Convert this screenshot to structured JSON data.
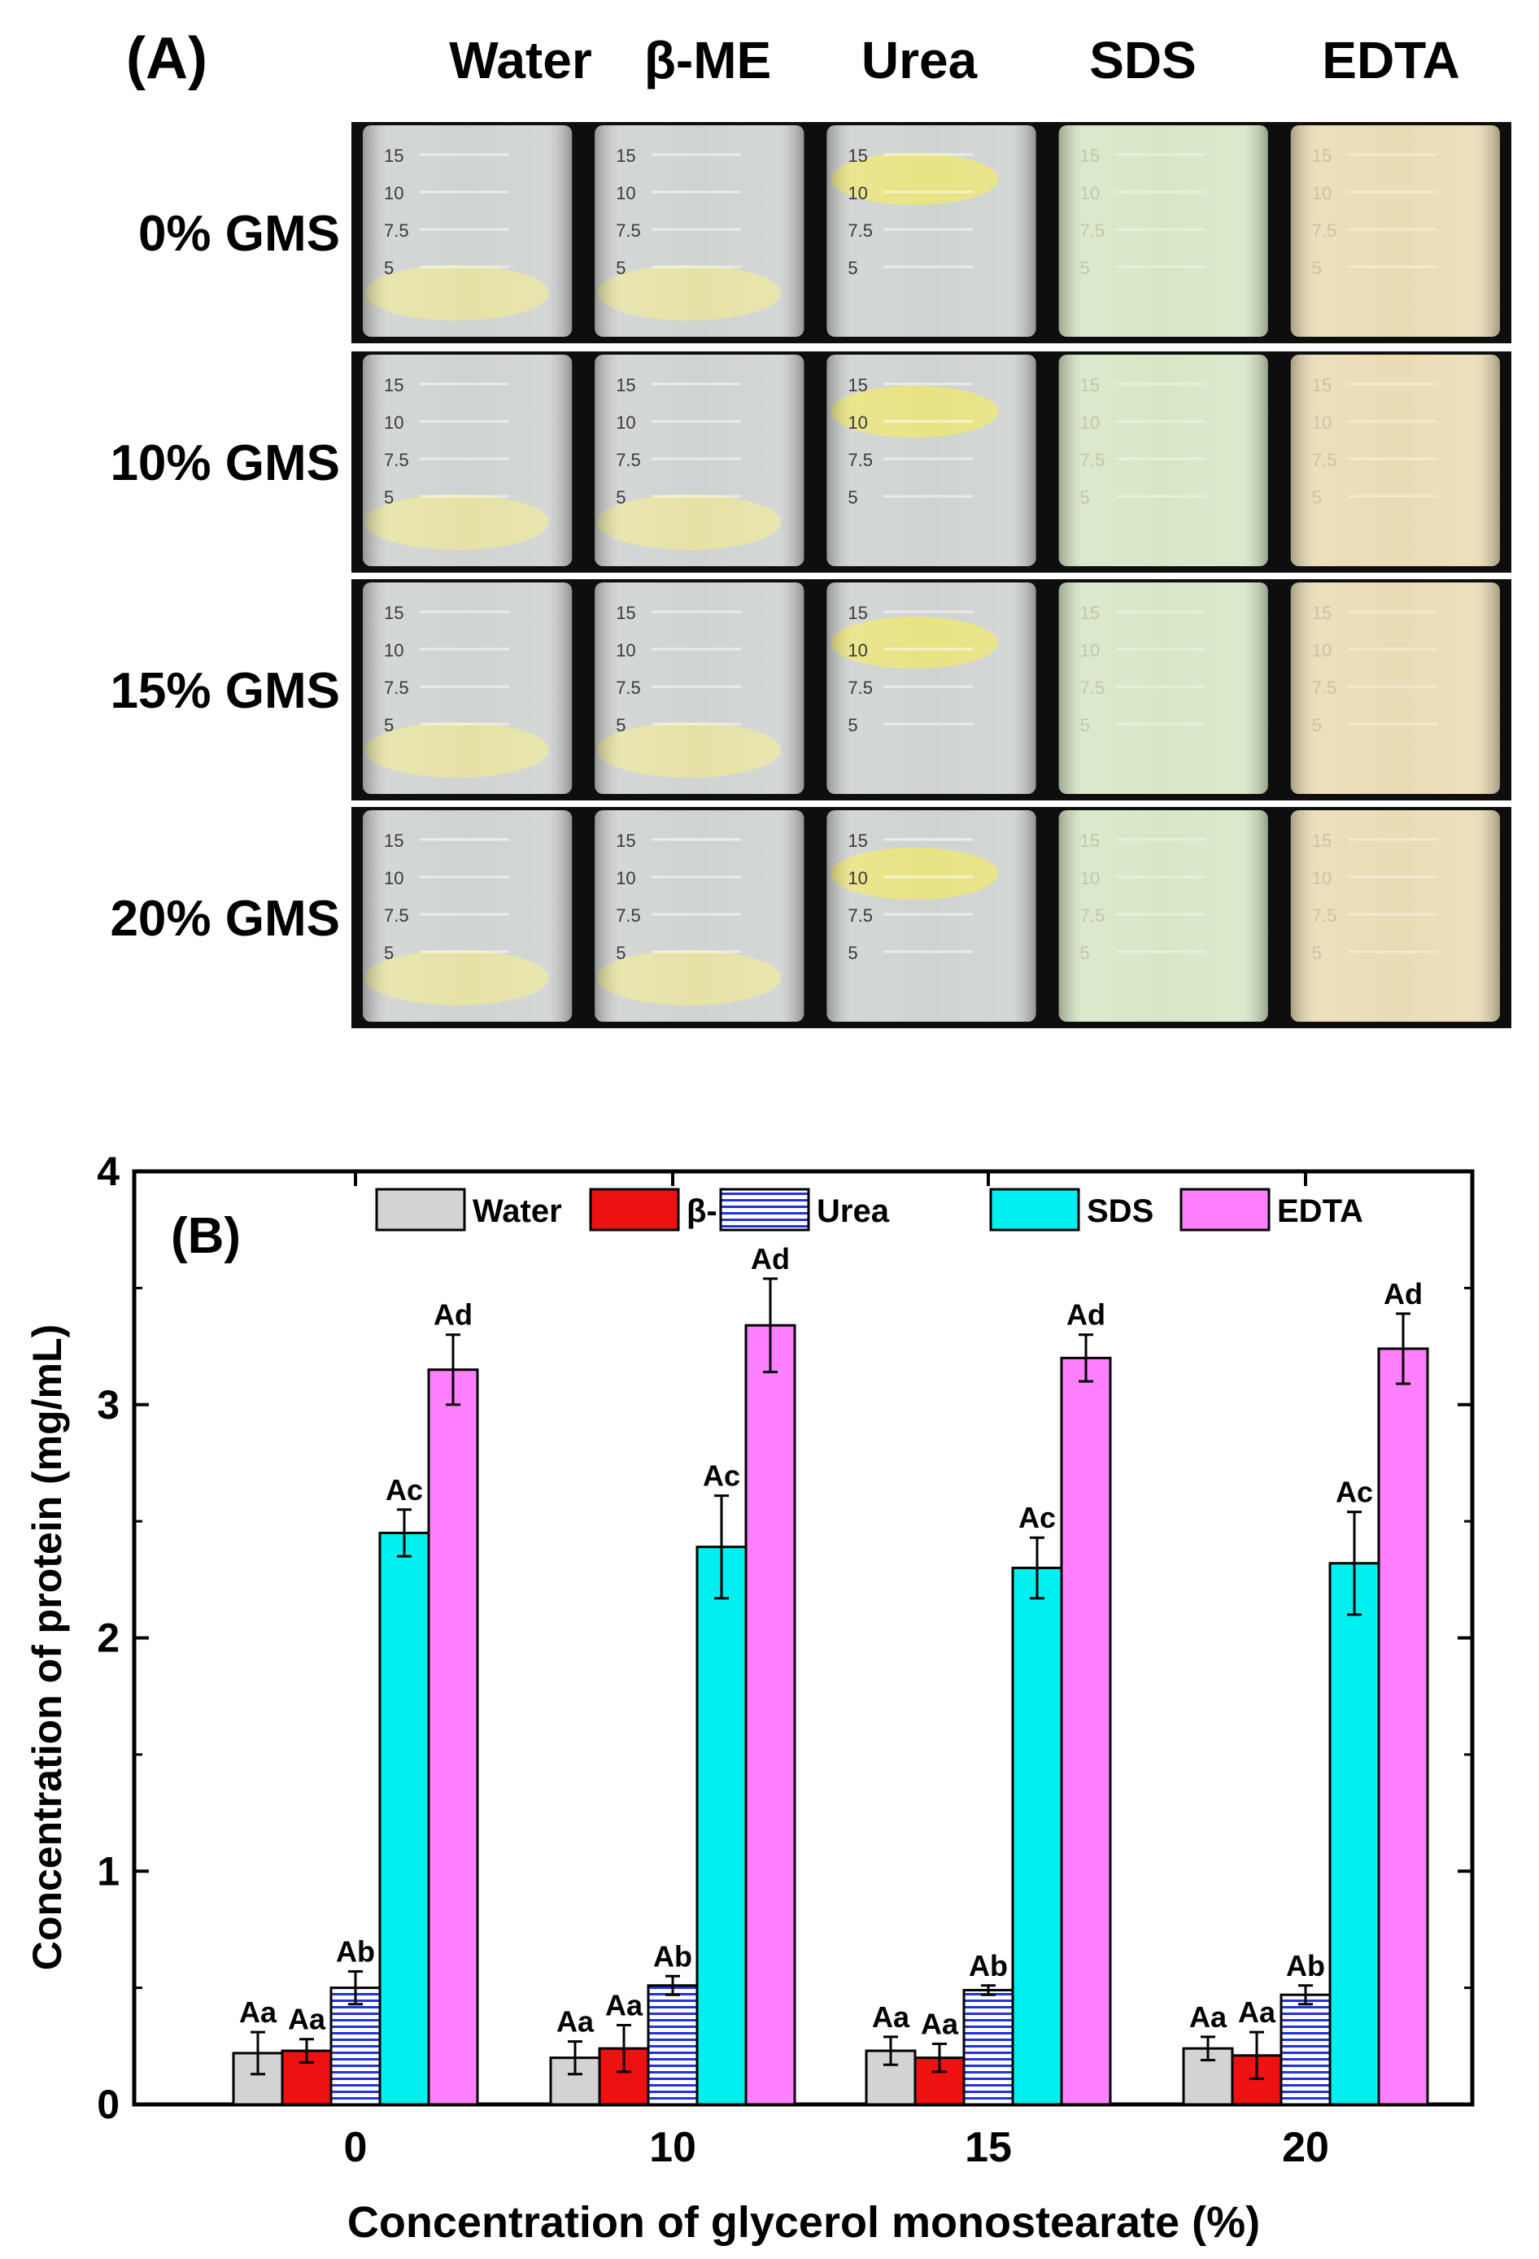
{
  "panel_a": {
    "label": "(A)",
    "columns": [
      "Water",
      "β-ME",
      "Urea",
      "SDS",
      "EDTA"
    ],
    "rows": [
      "0% GMS",
      "10% GMS",
      "15% GMS",
      "20% GMS"
    ],
    "scale_marks": [
      "15",
      "10",
      "7.5",
      "5"
    ],
    "colors": {
      "background": "#0e0e0e",
      "liquid_clear": "#cfd3d2",
      "liquid_green": "#d7e7c6",
      "liquid_cream": "#eadcb5",
      "gel": "#e6e2a6",
      "gel_urea": "#e8e383"
    }
  },
  "chart_data": {
    "type": "bar",
    "panel_label": "(B)",
    "title": "",
    "xlabel": "Concentration of glycerol monostearate (%)",
    "ylabel": "Concentration of protein (mg/mL)",
    "categories": [
      "0",
      "10",
      "15",
      "20"
    ],
    "ylim": [
      0,
      4
    ],
    "yticks": [
      "0",
      "1",
      "2",
      "3",
      "4"
    ],
    "legend_position": "top",
    "series": [
      {
        "name": "Water",
        "color": "#d3d3d3",
        "pattern": "solid",
        "values": [
          0.22,
          0.2,
          0.23,
          0.24
        ],
        "errors": [
          0.09,
          0.07,
          0.06,
          0.05
        ],
        "labels": [
          "Aa",
          "Aa",
          "Aa",
          "Aa"
        ]
      },
      {
        "name": "β-ME",
        "color": "#ee1111",
        "pattern": "solid",
        "values": [
          0.23,
          0.24,
          0.2,
          0.21
        ],
        "errors": [
          0.05,
          0.1,
          0.06,
          0.1
        ],
        "labels": [
          "Aa",
          "Aa",
          "Aa",
          "Aa"
        ]
      },
      {
        "name": "Urea",
        "color": "#2233dd",
        "pattern": "horizontal-lines",
        "values": [
          0.5,
          0.51,
          0.49,
          0.47
        ],
        "errors": [
          0.07,
          0.04,
          0.02,
          0.04
        ],
        "labels": [
          "Ab",
          "Ab",
          "Ab",
          "Ab"
        ]
      },
      {
        "name": "SDS",
        "color": "#00f0f0",
        "pattern": "solid",
        "values": [
          2.45,
          2.39,
          2.3,
          2.32
        ],
        "errors": [
          0.1,
          0.22,
          0.13,
          0.22
        ],
        "labels": [
          "Ac",
          "Ac",
          "Ac",
          "Ac"
        ]
      },
      {
        "name": "EDTA",
        "color": "#ff80ff",
        "pattern": "solid",
        "values": [
          3.15,
          3.34,
          3.2,
          3.24
        ],
        "errors": [
          0.15,
          0.2,
          0.1,
          0.15
        ],
        "labels": [
          "Ad",
          "Ad",
          "Ad",
          "Ad"
        ]
      }
    ]
  }
}
